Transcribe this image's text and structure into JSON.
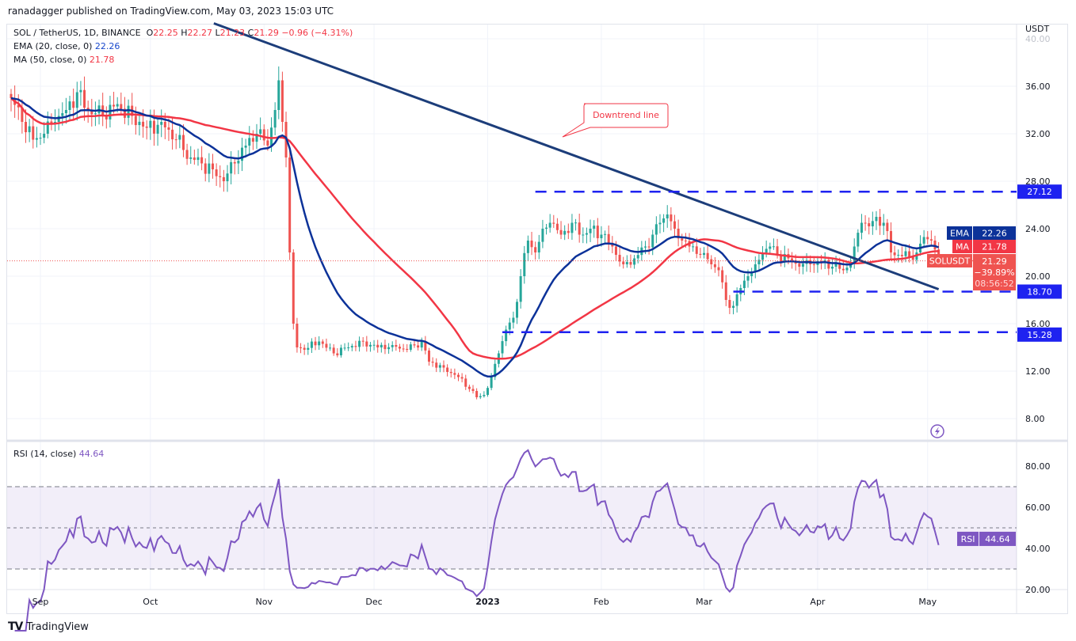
{
  "header": {
    "published": "ranadagger published on TradingView.com, May 03, 2023 15:03 UTC"
  },
  "legend": {
    "symbol": "SOL / TetherUS, 1D, BINANCE",
    "o_label": "O",
    "open": "22.25",
    "h_label": "H",
    "high": "22.27",
    "l_label": "L",
    "low": "21.23",
    "c_label": "C",
    "close": "21.29",
    "change": "−0.96 (−4.31%)",
    "ema_label": "EMA (20, close, 0)",
    "ema_value": "22.26",
    "ma_label": "MA (50, close, 0)",
    "ma_value": "21.78",
    "rsi_label": "RSI (14, close)",
    "rsi_value": "44.64"
  },
  "price_axis": {
    "currency": "USDT",
    "ticks": [
      "40.00",
      "36.00",
      "32.00",
      "28.00",
      "24.00",
      "20.00",
      "16.00",
      "12.00",
      "8.00"
    ],
    "tick_values": [
      40,
      36,
      32,
      28,
      24,
      20,
      16,
      12,
      8
    ],
    "badges": {
      "ema_tag": "EMA",
      "ema": "22.26",
      "ma_tag": "MA",
      "ma": "21.78",
      "symbol_tag": "SOLUSDT",
      "last": "21.29",
      "pct": "−39.89%",
      "countdown": "08:56:52",
      "level_high": "27.12",
      "level_mid": "18.70",
      "level_low": "15.28",
      "rsi_tag": "RSI",
      "rsi": "44.64"
    }
  },
  "rsi_axis": {
    "ticks": [
      "80.00",
      "60.00",
      "40.00",
      "20.00"
    ],
    "tick_values": [
      80,
      60,
      40,
      20
    ],
    "band": [
      30,
      70
    ]
  },
  "time_axis": {
    "labels": [
      "Sep",
      "Oct",
      "Nov",
      "Dec",
      "2023",
      "Feb",
      "Mar",
      "Apr",
      "May"
    ],
    "label_days": [
      8,
      38,
      69,
      99,
      130,
      161,
      189,
      220,
      250
    ]
  },
  "annotations": {
    "downtrend_label": "Downtrend line"
  },
  "colors": {
    "up": "#26a69a",
    "down": "#ef5350",
    "ema": "#0c3299",
    "ma": "#f23645",
    "rsi": "#7e57c2",
    "levels": "#1e22f0",
    "trend": "#1c3d7a"
  },
  "footer": {
    "brand": "TradingView"
  },
  "chart_data": {
    "type": "candlestick",
    "title": "SOL / TetherUS, 1D, BINANCE",
    "ylabel": "USDT",
    "ylim": [
      7,
      41
    ],
    "close_keypoints": [
      [
        0,
        35
      ],
      [
        3,
        33
      ],
      [
        6,
        31.5
      ],
      [
        9,
        32
      ],
      [
        12,
        33
      ],
      [
        15,
        34
      ],
      [
        18,
        35.5
      ],
      [
        21,
        34
      ],
      [
        25,
        33.5
      ],
      [
        29,
        34.5
      ],
      [
        33,
        33.5
      ],
      [
        37,
        32.5
      ],
      [
        41,
        33
      ],
      [
        45,
        31.5
      ],
      [
        49,
        30
      ],
      [
        52,
        29.5
      ],
      [
        55,
        29
      ],
      [
        58,
        28
      ],
      [
        61,
        29.5
      ],
      [
        64,
        31
      ],
      [
        67,
        32
      ],
      [
        70,
        31
      ],
      [
        72,
        34
      ],
      [
        73,
        36.5
      ],
      [
        74,
        33
      ],
      [
        75,
        30
      ],
      [
        76,
        22
      ],
      [
        77,
        16
      ],
      [
        78,
        14
      ],
      [
        80,
        13.8
      ],
      [
        84,
        14.5
      ],
      [
        88,
        13.5
      ],
      [
        92,
        14
      ],
      [
        96,
        14.5
      ],
      [
        100,
        14
      ],
      [
        104,
        14.2
      ],
      [
        108,
        13.8
      ],
      [
        112,
        14.5
      ],
      [
        114,
        12.8
      ],
      [
        118,
        12.3
      ],
      [
        122,
        11.5
      ],
      [
        125,
        10.5
      ],
      [
        127,
        9.8
      ],
      [
        129,
        10
      ],
      [
        131,
        11.5
      ],
      [
        133,
        13.5
      ],
      [
        135,
        15.5
      ],
      [
        137,
        16.5
      ],
      [
        139,
        20
      ],
      [
        141,
        23
      ],
      [
        143,
        22
      ],
      [
        145,
        24
      ],
      [
        147,
        24.5
      ],
      [
        150,
        23.5
      ],
      [
        153,
        24.5
      ],
      [
        156,
        23.5
      ],
      [
        158,
        24
      ],
      [
        161,
        23.5
      ],
      [
        164,
        22.5
      ],
      [
        167,
        21
      ],
      [
        170,
        21.5
      ],
      [
        173,
        22.5
      ],
      [
        175,
        23.5
      ],
      [
        177,
        24.5
      ],
      [
        179,
        25.2
      ],
      [
        181,
        24
      ],
      [
        183,
        23
      ],
      [
        185,
        22.5
      ],
      [
        188,
        21.8
      ],
      [
        191,
        21
      ],
      [
        193,
        20.5
      ],
      [
        195,
        18
      ],
      [
        197,
        17.5
      ],
      [
        199,
        19
      ],
      [
        201,
        20
      ],
      [
        203,
        21
      ],
      [
        205,
        22
      ],
      [
        207,
        22.5
      ],
      [
        209,
        21.8
      ],
      [
        212,
        21.5
      ],
      [
        215,
        20.8
      ],
      [
        218,
        21
      ],
      [
        221,
        21.2
      ],
      [
        224,
        20.8
      ],
      [
        227,
        20.5
      ],
      [
        229,
        21
      ],
      [
        230,
        22.5
      ],
      [
        232,
        24.5
      ],
      [
        234,
        24.2
      ],
      [
        236,
        25
      ],
      [
        238,
        24.5
      ],
      [
        239,
        23.8
      ],
      [
        240,
        22
      ],
      [
        242,
        21.8
      ],
      [
        245,
        21.6
      ],
      [
        247,
        22
      ],
      [
        249,
        23.3
      ],
      [
        251,
        23
      ],
      [
        252,
        22.25
      ],
      [
        253,
        21.29
      ]
    ],
    "levels": [
      27.12,
      18.7,
      15.28
    ],
    "downtrend_line": [
      [
        55.3,
        41.3
      ],
      [
        253,
        18.9
      ]
    ],
    "indicators": {
      "ema_period": 20,
      "ma_period": 50,
      "rsi_period": 14
    }
  }
}
